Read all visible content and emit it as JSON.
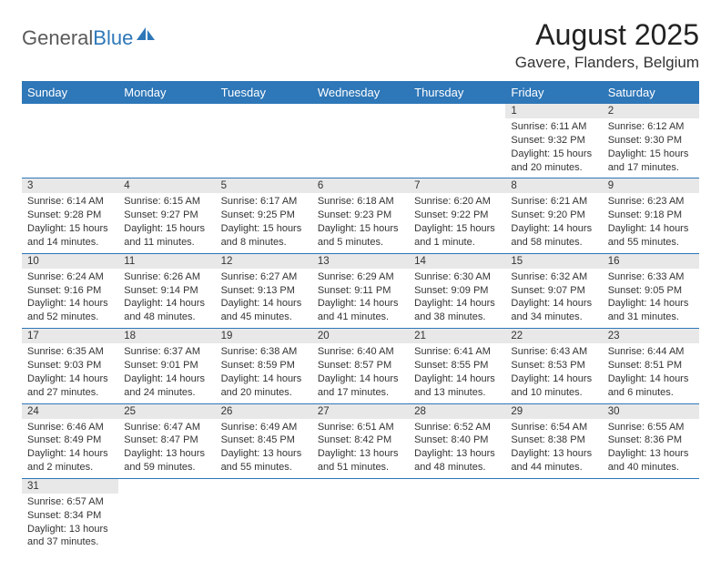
{
  "brand": {
    "general": "General",
    "blue": "Blue"
  },
  "title": "August 2025",
  "location": "Gavere, Flanders, Belgium",
  "colors": {
    "header_bg": "#2e77b8",
    "header_fg": "#ffffff",
    "daynum_bg": "#e8e8e8",
    "border": "#2e77b8",
    "text": "#333333"
  },
  "weekdays": [
    "Sunday",
    "Monday",
    "Tuesday",
    "Wednesday",
    "Thursday",
    "Friday",
    "Saturday"
  ],
  "weeks": [
    [
      null,
      null,
      null,
      null,
      null,
      {
        "n": "1",
        "sr": "6:11 AM",
        "ss": "9:32 PM",
        "dl": "15 hours and 20 minutes."
      },
      {
        "n": "2",
        "sr": "6:12 AM",
        "ss": "9:30 PM",
        "dl": "15 hours and 17 minutes."
      }
    ],
    [
      {
        "n": "3",
        "sr": "6:14 AM",
        "ss": "9:28 PM",
        "dl": "15 hours and 14 minutes."
      },
      {
        "n": "4",
        "sr": "6:15 AM",
        "ss": "9:27 PM",
        "dl": "15 hours and 11 minutes."
      },
      {
        "n": "5",
        "sr": "6:17 AM",
        "ss": "9:25 PM",
        "dl": "15 hours and 8 minutes."
      },
      {
        "n": "6",
        "sr": "6:18 AM",
        "ss": "9:23 PM",
        "dl": "15 hours and 5 minutes."
      },
      {
        "n": "7",
        "sr": "6:20 AM",
        "ss": "9:22 PM",
        "dl": "15 hours and 1 minute."
      },
      {
        "n": "8",
        "sr": "6:21 AM",
        "ss": "9:20 PM",
        "dl": "14 hours and 58 minutes."
      },
      {
        "n": "9",
        "sr": "6:23 AM",
        "ss": "9:18 PM",
        "dl": "14 hours and 55 minutes."
      }
    ],
    [
      {
        "n": "10",
        "sr": "6:24 AM",
        "ss": "9:16 PM",
        "dl": "14 hours and 52 minutes."
      },
      {
        "n": "11",
        "sr": "6:26 AM",
        "ss": "9:14 PM",
        "dl": "14 hours and 48 minutes."
      },
      {
        "n": "12",
        "sr": "6:27 AM",
        "ss": "9:13 PM",
        "dl": "14 hours and 45 minutes."
      },
      {
        "n": "13",
        "sr": "6:29 AM",
        "ss": "9:11 PM",
        "dl": "14 hours and 41 minutes."
      },
      {
        "n": "14",
        "sr": "6:30 AM",
        "ss": "9:09 PM",
        "dl": "14 hours and 38 minutes."
      },
      {
        "n": "15",
        "sr": "6:32 AM",
        "ss": "9:07 PM",
        "dl": "14 hours and 34 minutes."
      },
      {
        "n": "16",
        "sr": "6:33 AM",
        "ss": "9:05 PM",
        "dl": "14 hours and 31 minutes."
      }
    ],
    [
      {
        "n": "17",
        "sr": "6:35 AM",
        "ss": "9:03 PM",
        "dl": "14 hours and 27 minutes."
      },
      {
        "n": "18",
        "sr": "6:37 AM",
        "ss": "9:01 PM",
        "dl": "14 hours and 24 minutes."
      },
      {
        "n": "19",
        "sr": "6:38 AM",
        "ss": "8:59 PM",
        "dl": "14 hours and 20 minutes."
      },
      {
        "n": "20",
        "sr": "6:40 AM",
        "ss": "8:57 PM",
        "dl": "14 hours and 17 minutes."
      },
      {
        "n": "21",
        "sr": "6:41 AM",
        "ss": "8:55 PM",
        "dl": "14 hours and 13 minutes."
      },
      {
        "n": "22",
        "sr": "6:43 AM",
        "ss": "8:53 PM",
        "dl": "14 hours and 10 minutes."
      },
      {
        "n": "23",
        "sr": "6:44 AM",
        "ss": "8:51 PM",
        "dl": "14 hours and 6 minutes."
      }
    ],
    [
      {
        "n": "24",
        "sr": "6:46 AM",
        "ss": "8:49 PM",
        "dl": "14 hours and 2 minutes."
      },
      {
        "n": "25",
        "sr": "6:47 AM",
        "ss": "8:47 PM",
        "dl": "13 hours and 59 minutes."
      },
      {
        "n": "26",
        "sr": "6:49 AM",
        "ss": "8:45 PM",
        "dl": "13 hours and 55 minutes."
      },
      {
        "n": "27",
        "sr": "6:51 AM",
        "ss": "8:42 PM",
        "dl": "13 hours and 51 minutes."
      },
      {
        "n": "28",
        "sr": "6:52 AM",
        "ss": "8:40 PM",
        "dl": "13 hours and 48 minutes."
      },
      {
        "n": "29",
        "sr": "6:54 AM",
        "ss": "8:38 PM",
        "dl": "13 hours and 44 minutes."
      },
      {
        "n": "30",
        "sr": "6:55 AM",
        "ss": "8:36 PM",
        "dl": "13 hours and 40 minutes."
      }
    ],
    [
      {
        "n": "31",
        "sr": "6:57 AM",
        "ss": "8:34 PM",
        "dl": "13 hours and 37 minutes."
      },
      null,
      null,
      null,
      null,
      null,
      null
    ]
  ],
  "labels": {
    "sunrise": "Sunrise:",
    "sunset": "Sunset:",
    "daylight": "Daylight:"
  }
}
